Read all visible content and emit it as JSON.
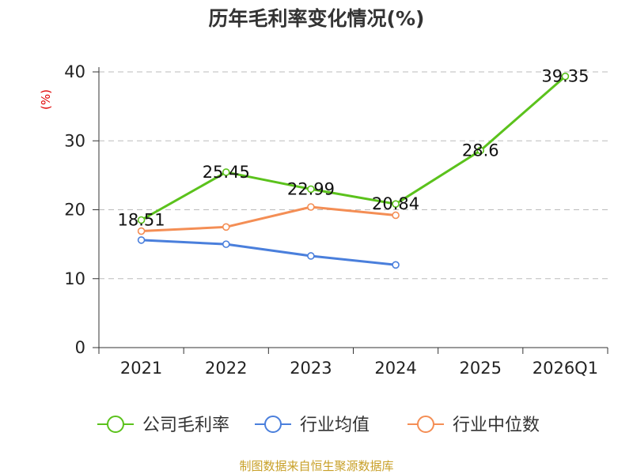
{
  "chart_data": {
    "type": "line",
    "title": "历年毛利率变化情况(%)",
    "ylabel": "(%)",
    "categories": [
      "2021",
      "2022",
      "2023",
      "2024",
      "2025",
      "2026Q1"
    ],
    "ylim": [
      0,
      40
    ],
    "yticks": [
      0,
      10,
      20,
      30,
      40
    ],
    "grid": true,
    "legend_position": "bottom",
    "series": [
      {
        "name": "公司毛利率",
        "color": "#5bc21c",
        "values": [
          18.51,
          25.45,
          22.99,
          20.84,
          28.6,
          39.35
        ],
        "labels": [
          "18.51",
          "25.45",
          "22.99",
          "20.84",
          "28.6",
          "39.35"
        ]
      },
      {
        "name": "行业均值",
        "color": "#4a7fdc",
        "values": [
          15.6,
          15.0,
          13.3,
          12.0,
          null,
          null
        ]
      },
      {
        "name": "行业中位数",
        "color": "#f48e55",
        "values": [
          16.9,
          17.5,
          20.4,
          19.2,
          null,
          null
        ]
      }
    ]
  },
  "colors": {
    "ylabel": "#e00000",
    "source": "#c8a028",
    "grid": "#bbbbbb",
    "axis": "#333333"
  },
  "source": "制图数据来自恒生聚源数据库"
}
